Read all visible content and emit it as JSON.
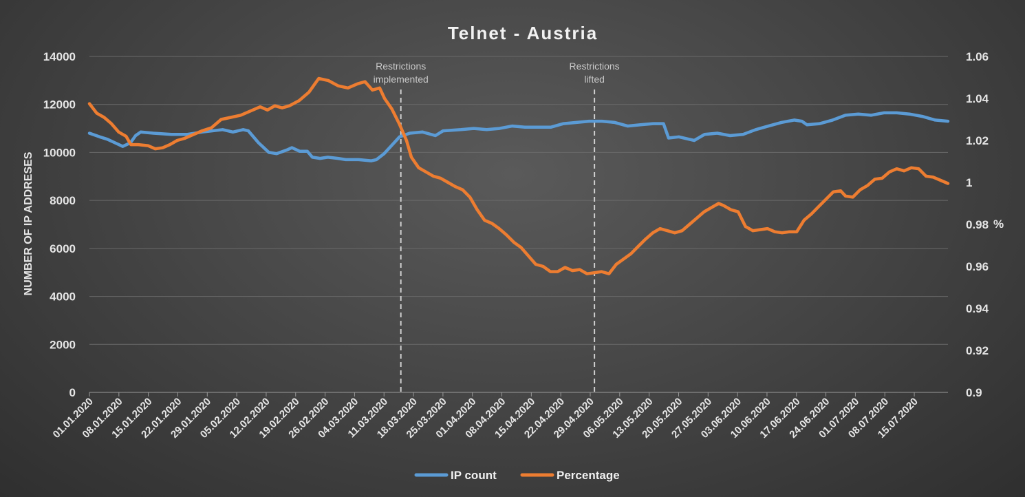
{
  "chart_data": {
    "type": "line",
    "title": "Telnet - Austria",
    "ylabel": "NUMBER OF IP ADDRESES",
    "y2label": "%",
    "ylim": [
      0,
      14000
    ],
    "y2lim": [
      0.9,
      1.06
    ],
    "yticks": [
      "0",
      "2000",
      "4000",
      "6000",
      "8000",
      "10000",
      "12000",
      "14000"
    ],
    "y2ticks": [
      "0.9",
      "0.92",
      "0.94",
      "0.96",
      "0.98",
      "1",
      "1.02",
      "1.04",
      "1.06"
    ],
    "x_dates": [
      "01.01.2020",
      "08.01.2020",
      "15.01.2020",
      "22.01.2020",
      "29.01.2020",
      "05.02.2020",
      "12.02.2020",
      "19.02.2020",
      "26.02.2020",
      "04.03.2020",
      "11.03.2020",
      "18.03.2020",
      "25.03.2020",
      "01.04.2020",
      "08.04.2020",
      "15.04.2020",
      "22.04.2020",
      "29.04.2020",
      "06.05.2020",
      "13.05.2020",
      "20.05.2020",
      "27.05.2020",
      "03.06.2020",
      "10.06.2020",
      "17.06.2020",
      "24.06.2020",
      "01.07.2020",
      "08.07.2020",
      "15.07.2020"
    ],
    "x_start": "01.01.2020",
    "x_end": "23.07.2020",
    "legend": "bottom",
    "grid": true,
    "series": [
      {
        "name": "IP count",
        "axis": "left",
        "color": "#5b9bd5",
        "points": [
          [
            0,
            10800
          ],
          [
            4,
            10650
          ],
          [
            7,
            10550
          ],
          [
            10,
            10400
          ],
          [
            13,
            10250
          ],
          [
            16,
            10400
          ],
          [
            18,
            10700
          ],
          [
            20,
            10850
          ],
          [
            25,
            10800
          ],
          [
            32,
            10750
          ],
          [
            38,
            10750
          ],
          [
            44,
            10850
          ],
          [
            52,
            10950
          ],
          [
            56,
            10850
          ],
          [
            60,
            10950
          ],
          [
            62,
            10900
          ],
          [
            66,
            10400
          ],
          [
            70,
            10000
          ],
          [
            73,
            9950
          ],
          [
            77,
            10100
          ],
          [
            79,
            10200
          ],
          [
            82,
            10050
          ],
          [
            85,
            10050
          ],
          [
            87,
            9800
          ],
          [
            90,
            9750
          ],
          [
            93,
            9800
          ],
          [
            97,
            9750
          ],
          [
            100,
            9700
          ],
          [
            105,
            9700
          ],
          [
            110,
            9650
          ],
          [
            112,
            9700
          ],
          [
            115,
            9950
          ],
          [
            118,
            10300
          ],
          [
            121,
            10650
          ],
          [
            125,
            10800
          ],
          [
            130,
            10850
          ],
          [
            135,
            10700
          ],
          [
            138,
            10900
          ],
          [
            145,
            10950
          ],
          [
            150,
            11000
          ],
          [
            155,
            10950
          ],
          [
            160,
            11000
          ],
          [
            165,
            11100
          ],
          [
            170,
            11050
          ],
          [
            175,
            11050
          ],
          [
            180,
            11050
          ],
          [
            185,
            11200
          ],
          [
            190,
            11250
          ],
          [
            195,
            11300
          ],
          [
            200,
            11300
          ],
          [
            205,
            11250
          ],
          [
            210,
            11100
          ],
          [
            215,
            11150
          ],
          [
            220,
            11200
          ],
          [
            224,
            11200
          ],
          [
            226,
            10600
          ],
          [
            230,
            10650
          ],
          [
            234,
            10550
          ],
          [
            236,
            10500
          ],
          [
            240,
            10750
          ],
          [
            245,
            10800
          ],
          [
            250,
            10700
          ],
          [
            255,
            10750
          ],
          [
            260,
            10950
          ],
          [
            265,
            11100
          ],
          [
            270,
            11250
          ],
          [
            275,
            11350
          ],
          [
            278,
            11300
          ],
          [
            280,
            11150
          ],
          [
            285,
            11200
          ],
          [
            290,
            11350
          ],
          [
            295,
            11550
          ],
          [
            300,
            11600
          ],
          [
            305,
            11550
          ],
          [
            310,
            11650
          ],
          [
            315,
            11650
          ],
          [
            320,
            11600
          ],
          [
            325,
            11500
          ],
          [
            330,
            11350
          ],
          [
            335,
            11300
          ]
        ]
      },
      {
        "name": "Percentage",
        "axis": "right",
        "color": "#ed7d31",
        "points": [
          [
            0,
            1.0375
          ],
          [
            3,
            1.033
          ],
          [
            6,
            1.031
          ],
          [
            9,
            1.028
          ],
          [
            12,
            1.024
          ],
          [
            15,
            1.022
          ],
          [
            17,
            1.018
          ],
          [
            20,
            1.018
          ],
          [
            24,
            1.0175
          ],
          [
            27,
            1.016
          ],
          [
            30,
            1.0165
          ],
          [
            33,
            1.018
          ],
          [
            36,
            1.02
          ],
          [
            39,
            1.021
          ],
          [
            42,
            1.0225
          ],
          [
            46,
            1.0245
          ],
          [
            50,
            1.026
          ],
          [
            54,
            1.03
          ],
          [
            58,
            1.031
          ],
          [
            62,
            1.032
          ],
          [
            66,
            1.034
          ],
          [
            70,
            1.036
          ],
          [
            73,
            1.0345
          ],
          [
            76,
            1.0365
          ],
          [
            79,
            1.0355
          ],
          [
            82,
            1.0365
          ],
          [
            86,
            1.039
          ],
          [
            90,
            1.043
          ],
          [
            94,
            1.0495
          ],
          [
            98,
            1.0485
          ],
          [
            102,
            1.046
          ],
          [
            106,
            1.045
          ],
          [
            110,
            1.047
          ],
          [
            113,
            1.048
          ],
          [
            116,
            1.044
          ],
          [
            119,
            1.045
          ],
          [
            121,
            1.04
          ],
          [
            124,
            1.035
          ],
          [
            127,
            1.028
          ],
          [
            130,
            1.02
          ],
          [
            132,
            1.012
          ],
          [
            135,
            1.007
          ],
          [
            138,
            1.005
          ],
          [
            141,
            1.003
          ],
          [
            144,
            1.002
          ],
          [
            147,
            1.0
          ],
          [
            150,
            0.998
          ],
          [
            153,
            0.9965
          ],
          [
            156,
            0.993
          ],
          [
            159,
            0.987
          ],
          [
            162,
            0.982
          ],
          [
            165,
            0.9805
          ],
          [
            168,
            0.978
          ],
          [
            171,
            0.975
          ],
          [
            174,
            0.9715
          ],
          [
            177,
            0.969
          ],
          [
            180,
            0.965
          ],
          [
            183,
            0.961
          ],
          [
            186,
            0.96
          ],
          [
            189,
            0.9575
          ],
          [
            192,
            0.9575
          ],
          [
            195,
            0.9595
          ],
          [
            198,
            0.958
          ],
          [
            201,
            0.9585
          ],
          [
            204,
            0.9565
          ],
          [
            207,
            0.957
          ],
          [
            210,
            0.9575
          ],
          [
            213,
            0.9565
          ],
          [
            216,
            0.961
          ],
          [
            219,
            0.9635
          ],
          [
            222,
            0.966
          ],
          [
            225,
            0.9695
          ],
          [
            228,
            0.973
          ],
          [
            231,
            0.976
          ],
          [
            234,
            0.978
          ],
          [
            237,
            0.977
          ],
          [
            240,
            0.976
          ],
          [
            243,
            0.977
          ],
          [
            246,
            0.98
          ],
          [
            249,
            0.983
          ],
          [
            252,
            0.986
          ],
          [
            255,
            0.988
          ],
          [
            258,
            0.99
          ],
          [
            260,
            0.989
          ],
          [
            263,
            0.987
          ],
          [
            266,
            0.986
          ],
          [
            269,
            0.979
          ],
          [
            272,
            0.977
          ],
          [
            275,
            0.9775
          ],
          [
            278,
            0.978
          ],
          [
            281,
            0.9765
          ],
          [
            284,
            0.976
          ],
          [
            287,
            0.9765
          ],
          [
            290,
            0.9765
          ],
          [
            293,
            0.982
          ],
          [
            296,
            0.985
          ],
          [
            299,
            0.9885
          ],
          [
            302,
            0.992
          ],
          [
            305,
            0.9955
          ],
          [
            308,
            0.996
          ],
          [
            310,
            0.9935
          ],
          [
            313,
            0.993
          ],
          [
            316,
            0.9965
          ],
          [
            319,
            0.9985
          ],
          [
            322,
            1.0015
          ],
          [
            325,
            1.002
          ],
          [
            328,
            1.005
          ],
          [
            331,
            1.0065
          ],
          [
            334,
            1.0055
          ],
          [
            337,
            1.007
          ],
          [
            340,
            1.0065
          ],
          [
            343,
            1.003
          ],
          [
            346,
            1.0025
          ],
          [
            349,
            1.001
          ],
          [
            352,
            0.9995
          ]
        ]
      }
    ],
    "annotations": [
      {
        "line1": "Restrictions",
        "line2": "implemented",
        "date_index": 11,
        "offset_days": -3
      },
      {
        "line1": "Restrictions",
        "line2": "lifted",
        "date_index": 17,
        "offset_days": 1
      }
    ]
  }
}
